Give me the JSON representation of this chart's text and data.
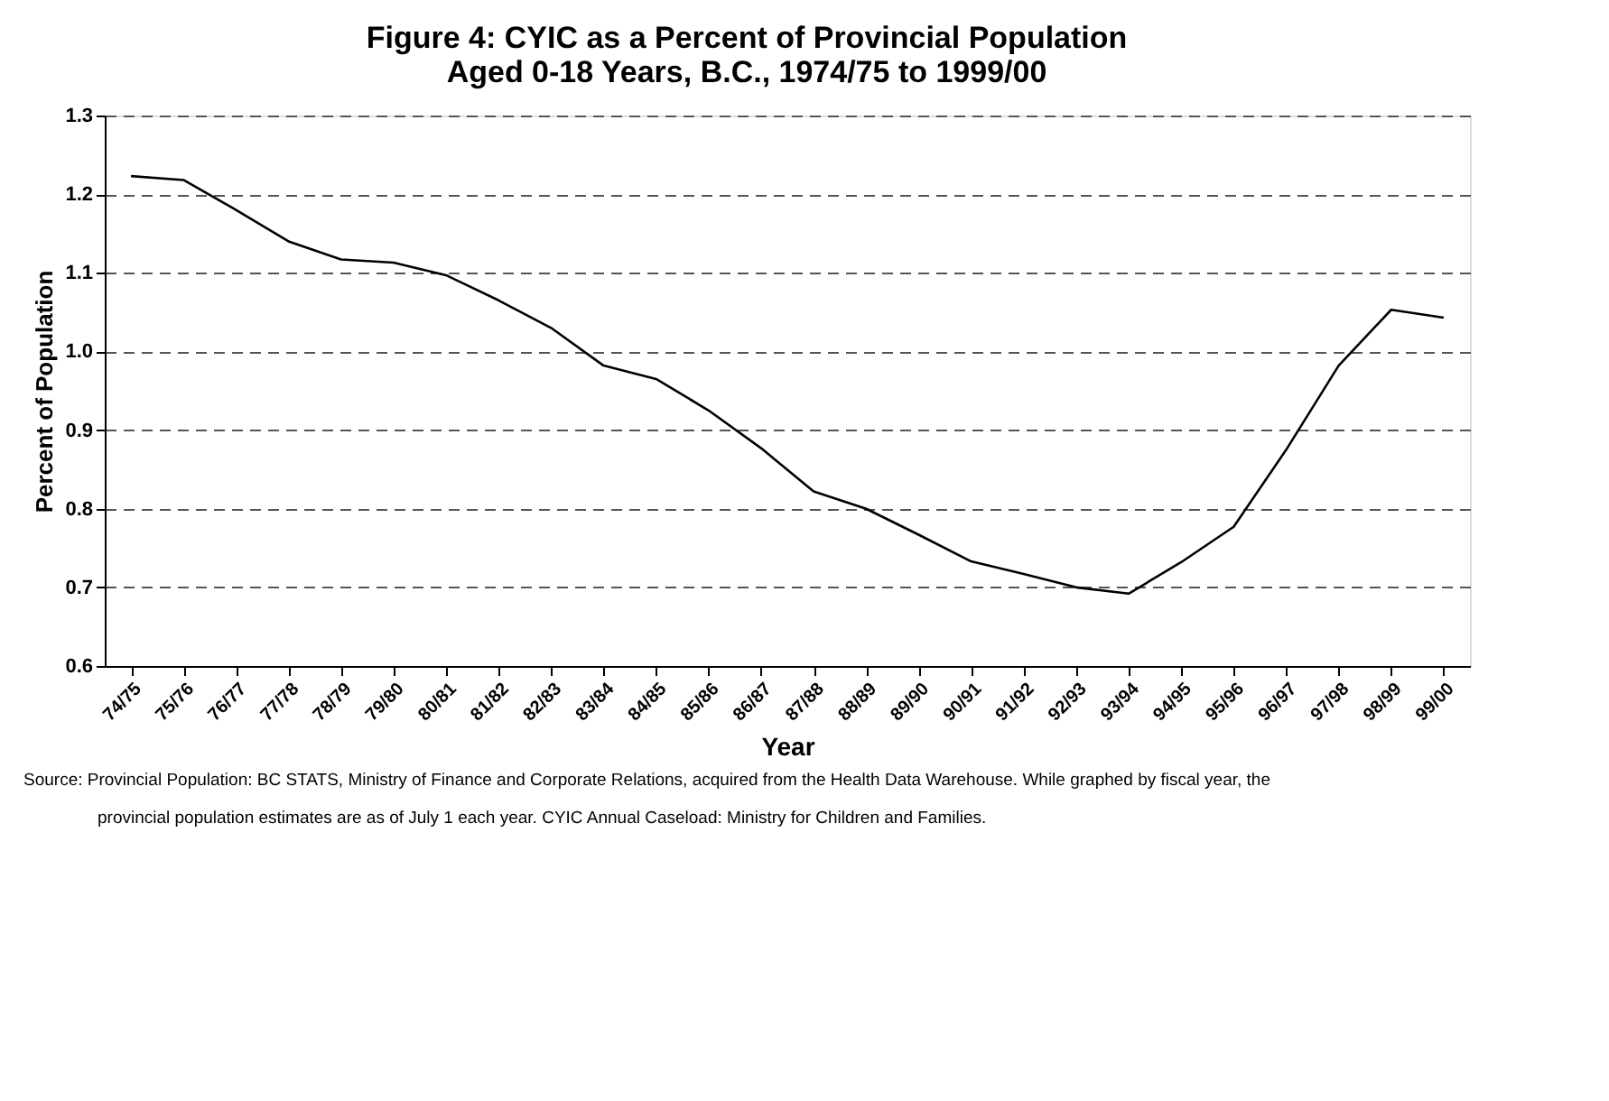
{
  "chart_data": {
    "type": "line",
    "title": [
      "Figure 4:   CYIC as a Percent of Provincial Population",
      "Aged 0-18 Years, B.C., 1974/75 to 1999/00"
    ],
    "xlabel": "Year",
    "ylabel": "Percent of Population",
    "categories": [
      "74/75",
      "75/76",
      "76/77",
      "77/78",
      "78/79",
      "79/80",
      "80/81",
      "81/82",
      "82/83",
      "83/84",
      "84/85",
      "85/86",
      "86/87",
      "87/88",
      "88/89",
      "89/90",
      "90/91",
      "91/92",
      "92/93",
      "93/94",
      "94/95",
      "95/96",
      "96/97",
      "97/98",
      "98/99",
      "99/00"
    ],
    "series": [
      {
        "color": "#000000",
        "values": [
          1.223,
          1.218,
          1.18,
          1.14,
          1.117,
          1.113,
          1.097,
          1.065,
          1.03,
          0.982,
          0.965,
          0.925,
          0.877,
          0.822,
          0.8,
          0.767,
          0.733,
          0.717,
          0.7,
          0.692,
          0.732,
          0.777,
          0.875,
          0.982,
          1.053,
          1.043
        ]
      }
    ],
    "ylim": [
      0.6,
      1.3
    ],
    "yticks": [
      {
        "value": 0.6,
        "label": "0.6"
      },
      {
        "value": 0.7,
        "label": "0.7"
      },
      {
        "value": 0.8,
        "label": "0.8"
      },
      {
        "value": 0.9,
        "label": "0.9"
      },
      {
        "value": 1.0,
        "label": "1.0"
      },
      {
        "value": 1.1,
        "label": "1.1"
      },
      {
        "value": 1.2,
        "label": "1.2"
      },
      {
        "value": 1.3,
        "label": "1.3"
      }
    ],
    "grid": "y",
    "line_style": "solid",
    "marker": "none",
    "annotations": [
      "Source:  Provincial Population:  BC STATS, Ministry of Finance and Corporate Relations, acquired from the Health Data Warehouse.  While graphed by fiscal year, the",
      "provincial population estimates are as of July 1 each year.   CYIC Annual Caseload:  Ministry for Children and Families."
    ]
  }
}
